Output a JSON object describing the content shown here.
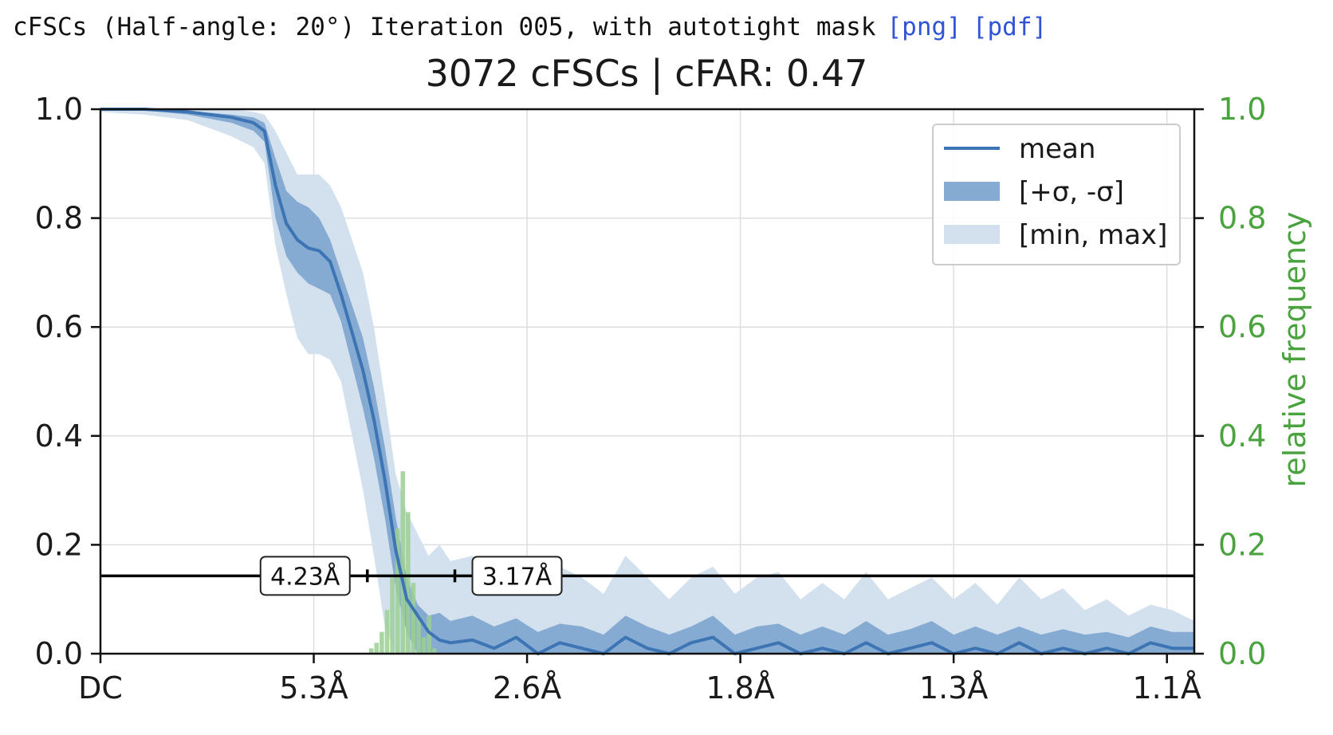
{
  "header": {
    "caption": "cFSCs (Half-angle: 20°) Iteration 005, with autotight mask",
    "link_png": "[png]",
    "link_pdf": "[pdf]"
  },
  "chart_data": {
    "type": "area",
    "title": "3072 cFSCs | cFAR: 0.47",
    "xlabel": "",
    "ylabel": "",
    "y2label": "relative frequency",
    "xlim": [
      0,
      0.5
    ],
    "ylim": [
      0,
      1.0
    ],
    "y2lim": [
      0,
      1.0
    ],
    "x_ticks": [
      0,
      0.0975,
      0.195,
      0.2925,
      0.39,
      0.4875
    ],
    "x_tick_labels": [
      "DC",
      "5.3Å",
      "2.6Å",
      "1.8Å",
      "1.3Å",
      "1.1Å"
    ],
    "y_ticks": [
      0.0,
      0.2,
      0.4,
      0.6,
      0.8,
      1.0
    ],
    "y_tick_labels": [
      "0.0",
      "0.2",
      "0.4",
      "0.6",
      "0.8",
      "1.0"
    ],
    "y2_ticks": [
      0.0,
      0.2,
      0.4,
      0.6,
      0.8,
      1.0
    ],
    "y2_tick_labels": [
      "0.0",
      "0.2",
      "0.4",
      "0.6",
      "0.8",
      "1.0"
    ],
    "grid": true,
    "legend_position": "top-right",
    "threshold": {
      "y": 0.143,
      "color": "#000000"
    },
    "annotations": [
      {
        "label": "4.23Å",
        "x": 0.122
      },
      {
        "label": "3.17Å",
        "x": 0.162
      }
    ],
    "colors": {
      "mean": "#3c74b4",
      "std": "#86abd2",
      "minmax": "#d3e1ef",
      "histogram": "#9bcf94",
      "right_axis": "#4aa33f"
    },
    "series": [
      {
        "name": "mean",
        "x": [
          0,
          0.02,
          0.04,
          0.06,
          0.07,
          0.075,
          0.08,
          0.085,
          0.09,
          0.095,
          0.1,
          0.105,
          0.11,
          0.115,
          0.12,
          0.125,
          0.13,
          0.135,
          0.14,
          0.145,
          0.15,
          0.155,
          0.16,
          0.17,
          0.18,
          0.19,
          0.2,
          0.21,
          0.22,
          0.23,
          0.24,
          0.25,
          0.26,
          0.27,
          0.28,
          0.29,
          0.3,
          0.31,
          0.32,
          0.33,
          0.34,
          0.35,
          0.36,
          0.37,
          0.38,
          0.39,
          0.4,
          0.41,
          0.42,
          0.43,
          0.44,
          0.45,
          0.46,
          0.47,
          0.48,
          0.49,
          0.5
        ],
        "y": [
          1.0,
          1.0,
          0.995,
          0.985,
          0.975,
          0.96,
          0.86,
          0.79,
          0.76,
          0.745,
          0.74,
          0.72,
          0.66,
          0.59,
          0.52,
          0.43,
          0.32,
          0.19,
          0.1,
          0.07,
          0.04,
          0.025,
          0.02,
          0.025,
          0.01,
          0.03,
          0.0,
          0.02,
          0.01,
          0.0,
          0.03,
          0.01,
          0.0,
          0.02,
          0.03,
          0.0,
          0.01,
          0.02,
          0.0,
          0.01,
          0.0,
          0.02,
          0.0,
          0.01,
          0.02,
          0.0,
          0.01,
          0.0,
          0.02,
          0.0,
          0.01,
          0.0,
          0.01,
          0.0,
          0.02,
          0.01,
          0.01
        ]
      },
      {
        "name": "[+σ, -σ]",
        "x": [
          0,
          0.02,
          0.04,
          0.06,
          0.07,
          0.075,
          0.08,
          0.085,
          0.09,
          0.095,
          0.1,
          0.105,
          0.11,
          0.115,
          0.12,
          0.125,
          0.13,
          0.135,
          0.14,
          0.145,
          0.15,
          0.155,
          0.16,
          0.17,
          0.18,
          0.19,
          0.2,
          0.21,
          0.22,
          0.23,
          0.24,
          0.25,
          0.26,
          0.27,
          0.28,
          0.29,
          0.3,
          0.31,
          0.32,
          0.33,
          0.34,
          0.35,
          0.36,
          0.37,
          0.38,
          0.39,
          0.4,
          0.41,
          0.42,
          0.43,
          0.44,
          0.45,
          0.46,
          0.47,
          0.48,
          0.49,
          0.5
        ],
        "upper": [
          1.0,
          1.0,
          0.997,
          0.99,
          0.985,
          0.975,
          0.91,
          0.85,
          0.83,
          0.82,
          0.8,
          0.76,
          0.7,
          0.64,
          0.58,
          0.49,
          0.38,
          0.25,
          0.14,
          0.09,
          0.07,
          0.075,
          0.06,
          0.07,
          0.05,
          0.065,
          0.04,
          0.055,
          0.05,
          0.035,
          0.07,
          0.05,
          0.035,
          0.05,
          0.07,
          0.035,
          0.05,
          0.055,
          0.035,
          0.05,
          0.035,
          0.06,
          0.035,
          0.045,
          0.06,
          0.035,
          0.05,
          0.035,
          0.05,
          0.035,
          0.045,
          0.035,
          0.04,
          0.03,
          0.05,
          0.04,
          0.04
        ],
        "lower": [
          1.0,
          0.998,
          0.99,
          0.975,
          0.96,
          0.94,
          0.8,
          0.73,
          0.7,
          0.68,
          0.67,
          0.66,
          0.61,
          0.53,
          0.45,
          0.36,
          0.25,
          0.12,
          0.04,
          0.0,
          0.0,
          0.0,
          0.0,
          0.0,
          0.0,
          0.0,
          0.0,
          0.0,
          0.0,
          0.0,
          0.0,
          0.0,
          0.0,
          0.0,
          0.0,
          0.0,
          0.0,
          0.0,
          0.0,
          0.0,
          0.0,
          0.0,
          0.0,
          0.0,
          0.0,
          0.0,
          0.0,
          0.0,
          0.0,
          0.0,
          0.0,
          0.0,
          0.0,
          0.0,
          0.0,
          0.0,
          0.0
        ]
      },
      {
        "name": "[min, max]",
        "x": [
          0,
          0.02,
          0.04,
          0.06,
          0.07,
          0.075,
          0.08,
          0.085,
          0.09,
          0.095,
          0.1,
          0.105,
          0.11,
          0.115,
          0.12,
          0.125,
          0.13,
          0.135,
          0.14,
          0.145,
          0.15,
          0.155,
          0.16,
          0.17,
          0.18,
          0.19,
          0.2,
          0.21,
          0.22,
          0.23,
          0.24,
          0.25,
          0.26,
          0.27,
          0.28,
          0.29,
          0.3,
          0.31,
          0.32,
          0.33,
          0.34,
          0.35,
          0.36,
          0.37,
          0.38,
          0.39,
          0.4,
          0.41,
          0.42,
          0.43,
          0.44,
          0.45,
          0.46,
          0.47,
          0.48,
          0.49,
          0.5
        ],
        "upper": [
          1.0,
          1.0,
          1.0,
          1.0,
          0.995,
          0.99,
          0.96,
          0.92,
          0.88,
          0.88,
          0.88,
          0.86,
          0.82,
          0.76,
          0.7,
          0.6,
          0.47,
          0.33,
          0.26,
          0.22,
          0.18,
          0.2,
          0.17,
          0.18,
          0.14,
          0.18,
          0.12,
          0.16,
          0.14,
          0.11,
          0.18,
          0.14,
          0.1,
          0.14,
          0.16,
          0.11,
          0.14,
          0.15,
          0.1,
          0.13,
          0.1,
          0.15,
          0.1,
          0.12,
          0.14,
          0.1,
          0.13,
          0.09,
          0.14,
          0.1,
          0.12,
          0.08,
          0.1,
          0.07,
          0.09,
          0.08,
          0.06
        ],
        "lower": [
          0.995,
          0.99,
          0.98,
          0.95,
          0.93,
          0.9,
          0.75,
          0.66,
          0.58,
          0.55,
          0.55,
          0.54,
          0.5,
          0.4,
          0.3,
          0.18,
          0.05,
          0.0,
          0.0,
          0.0,
          0.0,
          0.0,
          0.0,
          0.0,
          0.0,
          0.0,
          0.0,
          0.0,
          0.0,
          0.0,
          0.0,
          0.0,
          0.0,
          0.0,
          0.0,
          0.0,
          0.0,
          0.0,
          0.0,
          0.0,
          0.0,
          0.0,
          0.0,
          0.0,
          0.0,
          0.0,
          0.0,
          0.0,
          0.0,
          0.0,
          0.0,
          0.0,
          0.0,
          0.0,
          0.0,
          0.0,
          0.0
        ]
      }
    ],
    "histogram": {
      "bin_width": 0.0024,
      "bins": [
        {
          "x": 0.124,
          "value": 0.01
        },
        {
          "x": 0.1264,
          "value": 0.02
        },
        {
          "x": 0.1288,
          "value": 0.04
        },
        {
          "x": 0.1312,
          "value": 0.08
        },
        {
          "x": 0.1336,
          "value": 0.14
        },
        {
          "x": 0.136,
          "value": 0.23
        },
        {
          "x": 0.1384,
          "value": 0.335
        },
        {
          "x": 0.1408,
          "value": 0.26
        },
        {
          "x": 0.1432,
          "value": 0.13
        },
        {
          "x": 0.1456,
          "value": 0.07
        },
        {
          "x": 0.148,
          "value": 0.03
        },
        {
          "x": 0.1504,
          "value": 0.07
        },
        {
          "x": 0.1528,
          "value": 0.01
        }
      ]
    }
  }
}
